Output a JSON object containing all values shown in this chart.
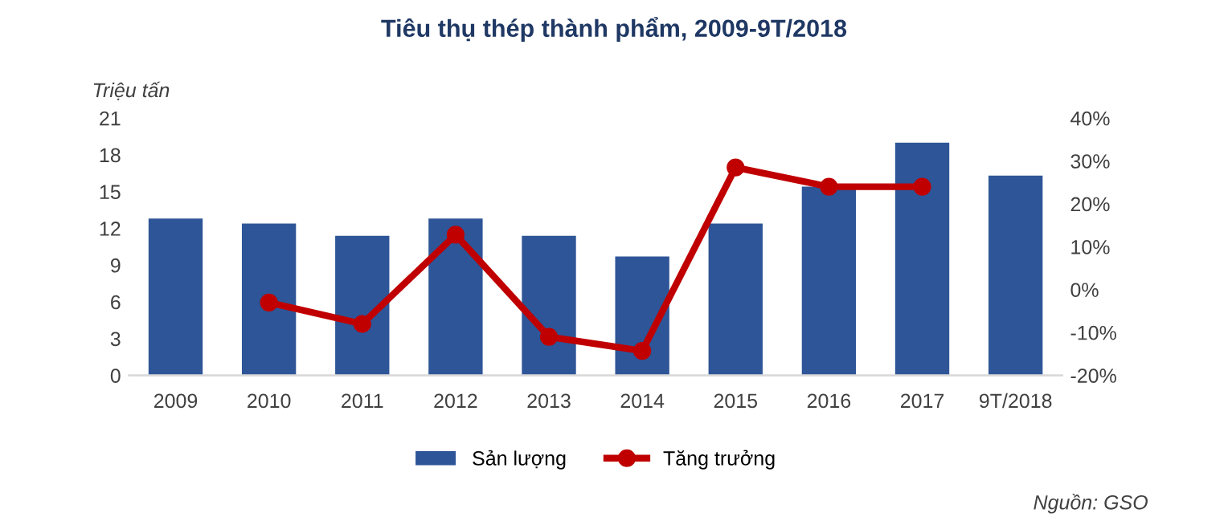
{
  "chart_data": {
    "type": "bar",
    "title": "Tiêu thụ thép thành phẩm, 2009-9T/2018",
    "ylabel": "Triệu tấn",
    "categories": [
      "2009",
      "2010",
      "2011",
      "2012",
      "2013",
      "2014",
      "2015",
      "2016",
      "2017",
      "9T/2018"
    ],
    "series": [
      {
        "name": "Sản lượng",
        "color": "#2e5597",
        "values": [
          12.8,
          12.4,
          11.4,
          12.8,
          11.4,
          9.7,
          12.4,
          15.4,
          19.0,
          16.3
        ]
      },
      {
        "name": "Tăng trưởng",
        "type": "line",
        "axis": "y2",
        "color": "#c00000",
        "marker": "circle",
        "values": [
          null,
          -3,
          -8,
          12.8,
          -11,
          -14.3,
          28.5,
          24,
          24,
          null
        ]
      }
    ],
    "ylim": [
      0,
      21
    ],
    "yticks": [
      0,
      3,
      6,
      9,
      12,
      15,
      18,
      21
    ],
    "y2lim": [
      -20,
      40
    ],
    "y2ticks": [
      {
        "value": -20,
        "label": "-20%"
      },
      {
        "value": -10,
        "label": "-10%"
      },
      {
        "value": 0,
        "label": "0%"
      },
      {
        "value": 10,
        "label": "10%"
      },
      {
        "value": 20,
        "label": "20%"
      },
      {
        "value": 30,
        "label": "30%"
      },
      {
        "value": 40,
        "label": "40%"
      }
    ],
    "legend": "bottom",
    "grid": false,
    "annotations": [
      "Nguồn: GSO"
    ]
  }
}
